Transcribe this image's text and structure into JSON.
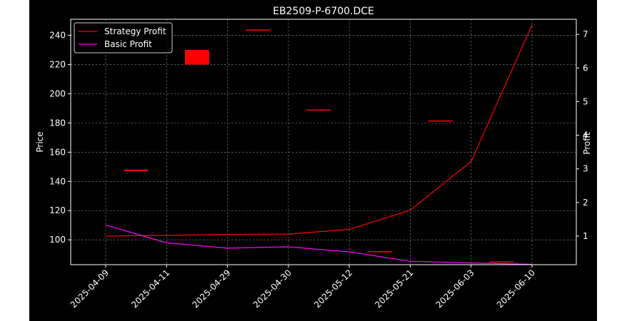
{
  "chart_data": {
    "type": "line",
    "title": "EB2509-P-6700.DCE",
    "xlabel": "",
    "ylabel": "Price",
    "y2label": "Profit",
    "categories": [
      "2025-04-09",
      "2025-04-11",
      "2025-04-29",
      "2025-04-30",
      "2025-05-12",
      "2025-05-21",
      "2025-06-03",
      "2025-06-10"
    ],
    "ylim": [
      83,
      251
    ],
    "yticks": [
      100,
      120,
      140,
      160,
      180,
      200,
      220,
      240
    ],
    "y2lim": [
      0.15,
      7.45
    ],
    "y2ticks": [
      1,
      2,
      3,
      4,
      5,
      6,
      7
    ],
    "grid": true,
    "legend_position": "top-left",
    "background": "#000000",
    "foreground": "#ffffff",
    "candles": [
      {
        "date": "2025-04-11",
        "open": 147,
        "close": 148
      },
      {
        "date": "2025-04-29",
        "open": 220,
        "close": 230
      },
      {
        "date": "2025-04-30",
        "open": 243.5,
        "close": 244
      },
      {
        "date": "2025-05-12",
        "open": 188.7,
        "close": 189.2
      },
      {
        "date": "2025-05-21",
        "open": 91.7,
        "close": 92.2
      },
      {
        "date": "2025-06-03",
        "open": 181.2,
        "close": 181.7
      },
      {
        "date": "2025-06-10",
        "open": 84.7,
        "close": 85.2
      }
    ],
    "candle_color": "#ff0000",
    "series": [
      {
        "name": "Strategy Profit",
        "color": "#ff0000",
        "axis": "right",
        "values": [
          1.0,
          1.02,
          1.05,
          1.06,
          1.2,
          1.77,
          3.22,
          7.28
        ]
      },
      {
        "name": "Basic Profit",
        "color": "#ff00ff",
        "axis": "right",
        "values": [
          1.33,
          0.8,
          0.64,
          0.68,
          0.53,
          0.25,
          0.2,
          0.16
        ]
      }
    ]
  }
}
